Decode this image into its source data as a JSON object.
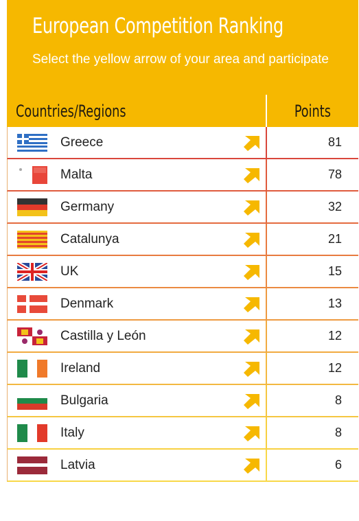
{
  "header": {
    "title": "European Competition Ranking",
    "subtitle": "Select the yellow arrow of your area and participate"
  },
  "columns": {
    "region": "Countries/Regions",
    "points": "Points"
  },
  "colors": {
    "header": "#f6b800",
    "arrow": "#f6b800"
  },
  "rows": [
    {
      "name": "Greece",
      "points": "81",
      "flag": "greece-flag-icon",
      "border": "#d9463a"
    },
    {
      "name": "Malta",
      "points": "78",
      "flag": "malta-flag-icon",
      "border": "#df5a3c"
    },
    {
      "name": "Germany",
      "points": "32",
      "flag": "germany-flag-icon",
      "border": "#e46a3e"
    },
    {
      "name": "Catalunya",
      "points": "21",
      "flag": "catalunya-flag-icon",
      "border": "#e87a3f"
    },
    {
      "name": "UK",
      "points": "15",
      "flag": "uk-flag-icon",
      "border": "#eb8a40"
    },
    {
      "name": "Denmark",
      "points": "13",
      "flag": "denmark-flag-icon",
      "border": "#ee9a40"
    },
    {
      "name": "Castilla y León",
      "points": "12",
      "flag": "castilla-leon-flag-icon",
      "border": "#f1aa40"
    },
    {
      "name": "Ireland",
      "points": "12",
      "flag": "ireland-flag-icon",
      "border": "#f3b840"
    },
    {
      "name": "Bulgaria",
      "points": "8",
      "flag": "bulgaria-flag-icon",
      "border": "#f5c640"
    },
    {
      "name": "Italy",
      "points": "8",
      "flag": "italy-flag-icon",
      "border": "#f7d040"
    },
    {
      "name": "Latvia",
      "points": "6",
      "flag": "latvia-flag-icon",
      "border": "#f8d848"
    }
  ]
}
